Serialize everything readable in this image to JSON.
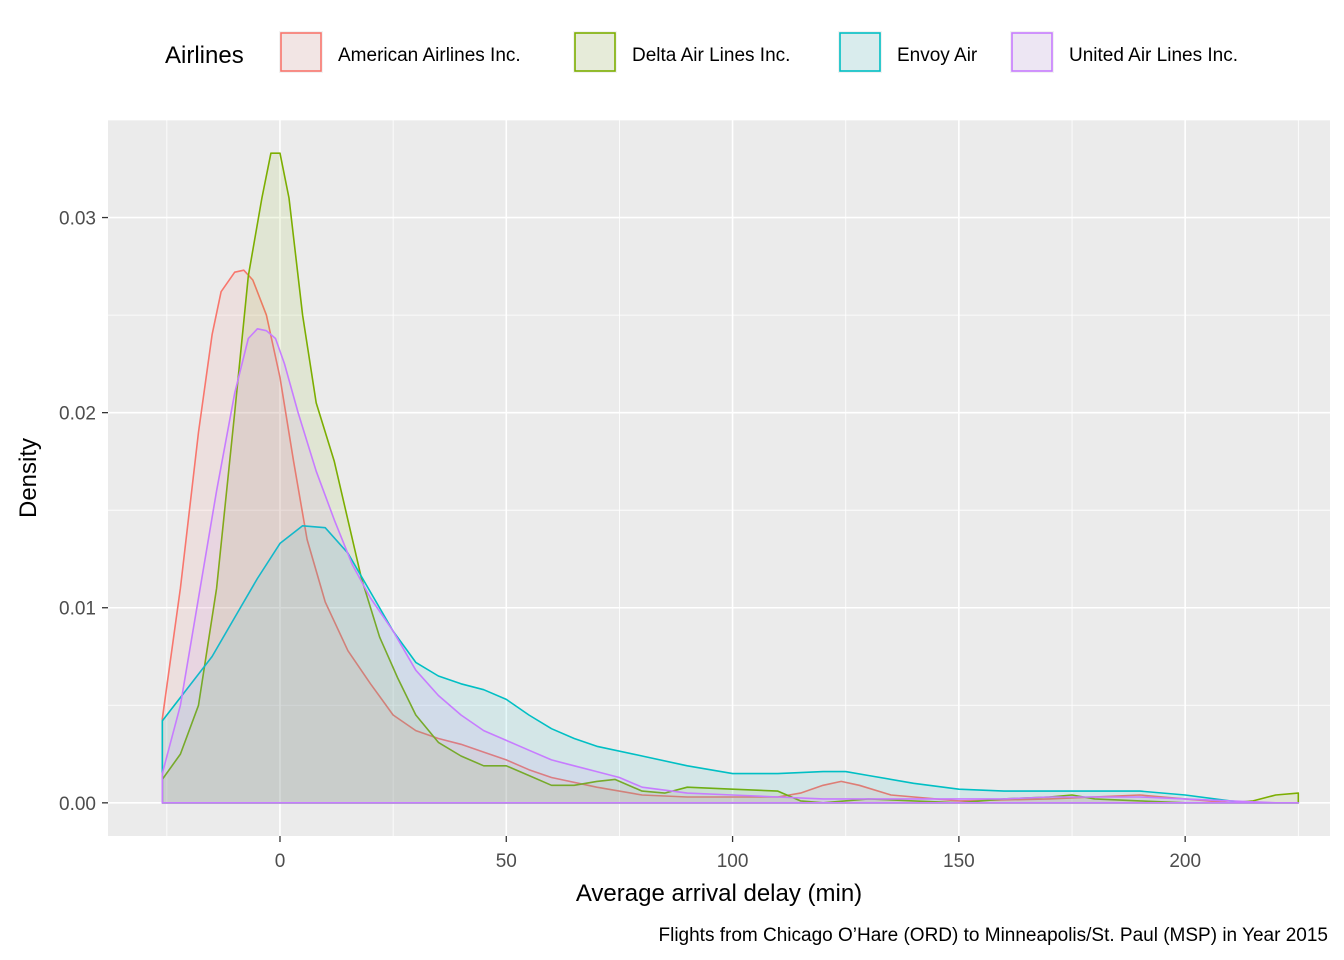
{
  "chart_data": {
    "type": "area",
    "subtype": "density",
    "title": "",
    "xlabel": "Average arrival delay (min)",
    "ylabel": "Density",
    "caption": "Flights from Chicago O’Hare (ORD) to Minneapolis/St. Paul (MSP) in Year 2015",
    "xlim": [
      -38,
      232
    ],
    "ylim": [
      -0.0017,
      0.035
    ],
    "x_ticks": [
      0,
      50,
      100,
      150,
      200
    ],
    "x_tick_labels": [
      "0",
      "50",
      "100",
      "150",
      "200"
    ],
    "y_ticks": [
      0.0,
      0.01,
      0.02,
      0.03
    ],
    "y_tick_labels": [
      "0.00",
      "0.01",
      "0.02",
      "0.03"
    ],
    "grid": true,
    "legend": {
      "title": "Airlines",
      "position": "top"
    },
    "series": [
      {
        "name": "American Airlines Inc.",
        "color": "#F8766D",
        "x": [
          -26,
          -22,
          -18,
          -15,
          -13,
          -10,
          -8,
          -6,
          -3,
          0,
          3,
          6,
          10,
          15,
          20,
          25,
          30,
          35,
          40,
          45,
          50,
          55,
          60,
          70,
          80,
          90,
          100,
          110,
          115,
          120,
          124,
          128,
          135,
          150,
          170,
          190,
          200,
          210,
          225
        ],
        "y": [
          0.0043,
          0.011,
          0.019,
          0.024,
          0.0262,
          0.0272,
          0.0273,
          0.0268,
          0.025,
          0.0218,
          0.0175,
          0.0135,
          0.0103,
          0.0078,
          0.0061,
          0.0045,
          0.0037,
          0.0033,
          0.003,
          0.0026,
          0.0022,
          0.0017,
          0.0013,
          0.0008,
          0.0004,
          0.0003,
          0.0003,
          0.0003,
          0.0005,
          0.0009,
          0.0011,
          0.0009,
          0.0004,
          0.0001,
          0.0002,
          0.0004,
          0.0002,
          0.0,
          0.0
        ]
      },
      {
        "name": "Delta Air Lines Inc.",
        "color": "#7CAE00",
        "x": [
          -26,
          -22,
          -18,
          -14,
          -10,
          -7,
          -4,
          -2,
          0,
          2,
          5,
          8,
          12,
          15,
          18,
          22,
          26,
          30,
          35,
          40,
          45,
          50,
          55,
          60,
          65,
          70,
          74,
          80,
          85,
          90,
          100,
          110,
          115,
          120,
          130,
          140,
          150,
          160,
          170,
          175,
          180,
          190,
          200,
          210,
          215,
          220,
          225
        ],
        "y": [
          0.0012,
          0.0025,
          0.005,
          0.011,
          0.02,
          0.027,
          0.031,
          0.0333,
          0.0333,
          0.031,
          0.025,
          0.0205,
          0.0175,
          0.0145,
          0.0115,
          0.0085,
          0.0064,
          0.0045,
          0.0031,
          0.0024,
          0.0019,
          0.0019,
          0.0014,
          0.0009,
          0.0009,
          0.0011,
          0.0012,
          0.0006,
          0.0005,
          0.0008,
          0.0007,
          0.0006,
          0.0001,
          0.0,
          0.0002,
          0.0001,
          0.0,
          0.0002,
          0.0003,
          0.0004,
          0.0002,
          0.0001,
          0.0,
          0.0,
          0.0001,
          0.0004,
          0.0005
        ]
      },
      {
        "name": "Envoy Air",
        "color": "#00BFC4",
        "x": [
          -26,
          -20,
          -15,
          -10,
          -5,
          0,
          5,
          10,
          15,
          20,
          25,
          30,
          35,
          40,
          45,
          50,
          55,
          60,
          65,
          70,
          80,
          90,
          100,
          110,
          120,
          125,
          130,
          140,
          150,
          160,
          170,
          180,
          190,
          200,
          210,
          215,
          220,
          225
        ],
        "y": [
          0.0042,
          0.006,
          0.0075,
          0.0095,
          0.0115,
          0.0133,
          0.0142,
          0.0141,
          0.0128,
          0.0108,
          0.0088,
          0.0072,
          0.0065,
          0.0061,
          0.0058,
          0.0053,
          0.0045,
          0.0038,
          0.0033,
          0.0029,
          0.0024,
          0.0019,
          0.0015,
          0.0015,
          0.0016,
          0.0016,
          0.0014,
          0.001,
          0.0007,
          0.0006,
          0.0006,
          0.0006,
          0.0006,
          0.0004,
          0.0001,
          0.0,
          0.0,
          0.0
        ]
      },
      {
        "name": "United Air Lines Inc.",
        "color": "#C77CFF",
        "x": [
          -26,
          -22,
          -18,
          -14,
          -10,
          -7,
          -5,
          -3,
          -1,
          1,
          4,
          8,
          12,
          16,
          20,
          25,
          30,
          35,
          40,
          45,
          50,
          55,
          60,
          65,
          70,
          75,
          80,
          90,
          100,
          110,
          120,
          130,
          140,
          150,
          160,
          170,
          180,
          190,
          200,
          210,
          220,
          225
        ],
        "y": [
          0.0015,
          0.005,
          0.0105,
          0.016,
          0.021,
          0.0238,
          0.0243,
          0.0242,
          0.0238,
          0.0225,
          0.02,
          0.017,
          0.0145,
          0.0122,
          0.0105,
          0.0088,
          0.0068,
          0.0055,
          0.0045,
          0.0037,
          0.0032,
          0.0027,
          0.0022,
          0.0019,
          0.0016,
          0.0013,
          0.0008,
          0.0005,
          0.0004,
          0.0003,
          0.0002,
          0.0002,
          0.0002,
          0.0002,
          0.0002,
          0.0003,
          0.0003,
          0.0003,
          0.0002,
          0.0001,
          0.0,
          0.0
        ]
      }
    ]
  }
}
